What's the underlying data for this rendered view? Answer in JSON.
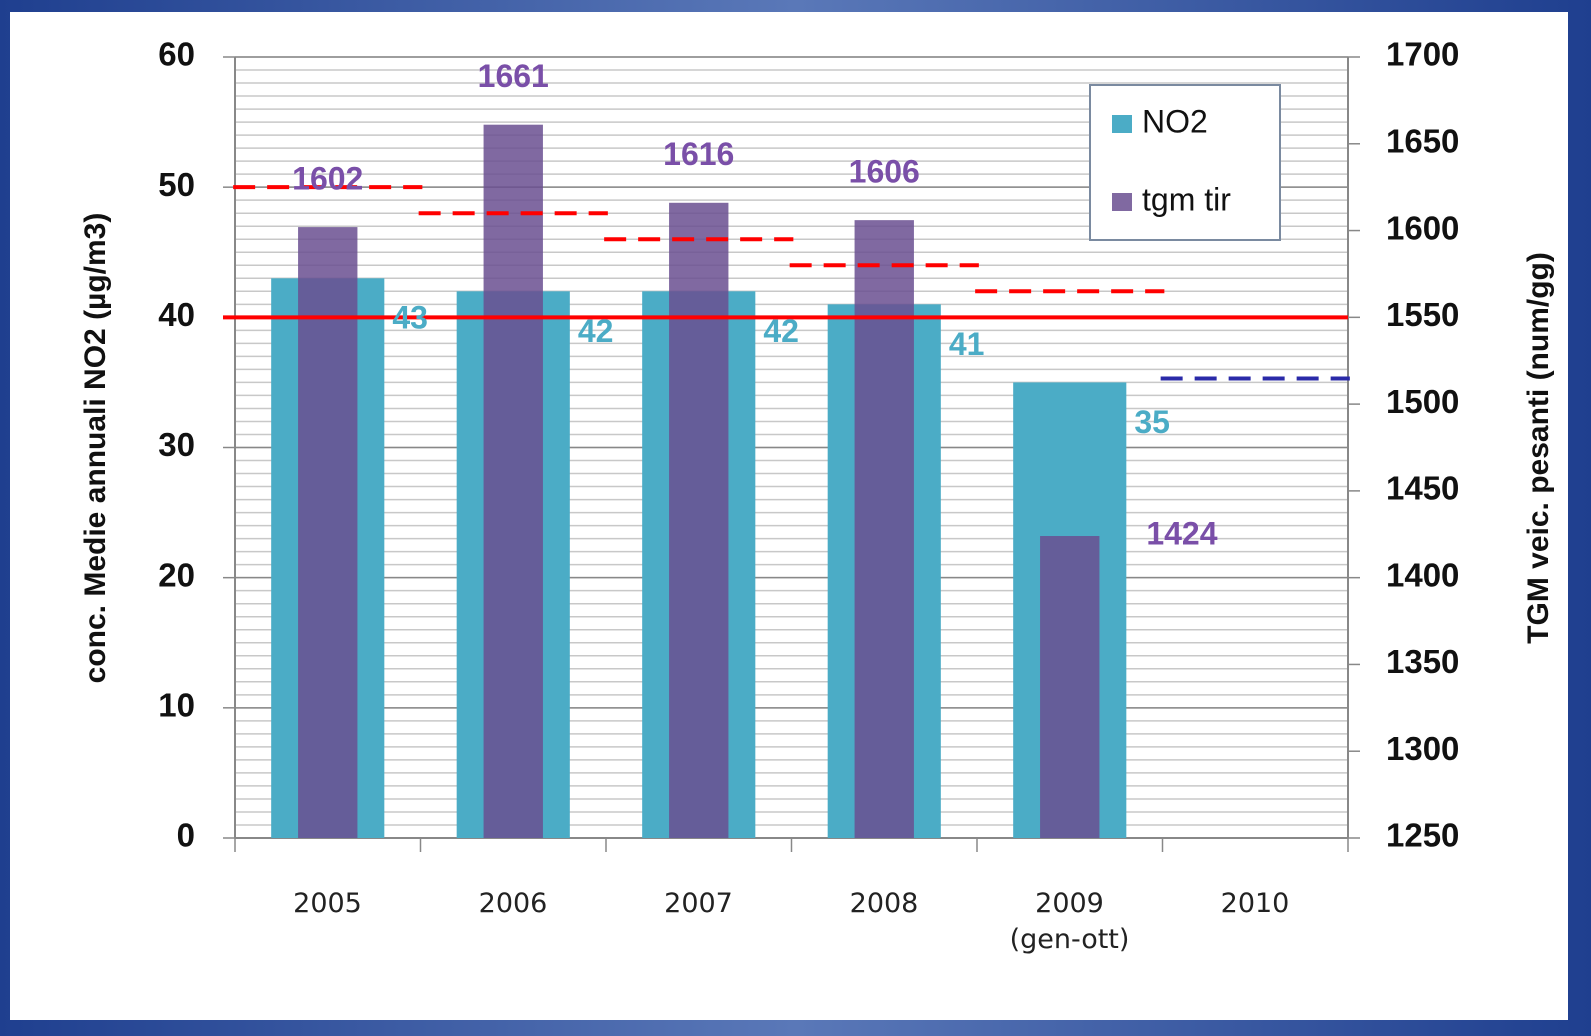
{
  "chart_data": {
    "type": "bar",
    "categories": [
      "2005",
      "2006",
      "2007",
      "2008",
      "2009\n(gen-ott)",
      "2010"
    ],
    "series": [
      {
        "name": "NO2",
        "color": "#4bacc6",
        "values": [
          43,
          42,
          42,
          41,
          35,
          null
        ]
      },
      {
        "name": "tgm tir",
        "color": "#6a4f90",
        "opacity": 0.85,
        "axis": "y2",
        "values": [
          1602,
          1661,
          1616,
          1606,
          1424,
          null
        ]
      }
    ],
    "ylabel": "conc. Medie annuali NO2 (µg/m3)",
    "y2label": "TGM veic. pesanti (num/gg)",
    "ylim": [
      0,
      60
    ],
    "yticks": [
      0,
      10,
      20,
      30,
      40,
      50,
      60
    ],
    "y2lim": [
      1250,
      1700
    ],
    "y2ticks": [
      1250,
      1300,
      1350,
      1400,
      1450,
      1500,
      1550,
      1600,
      1650,
      1700
    ],
    "yminorticks": [
      0,
      1,
      2,
      3,
      4,
      5,
      6,
      7,
      8,
      9,
      10,
      11,
      12,
      13,
      14,
      15,
      16,
      17,
      18,
      19,
      20,
      21,
      22,
      23,
      24,
      25,
      26,
      27,
      28,
      29,
      30,
      31,
      32,
      33,
      34,
      35,
      36,
      37,
      38,
      39,
      40,
      41,
      42,
      43,
      44,
      45,
      46,
      47,
      48,
      49,
      50,
      51,
      52,
      53,
      54,
      55,
      56,
      57,
      58,
      59,
      60
    ],
    "grid": true,
    "legend": "upper right",
    "hline": {
      "value": 40,
      "color": "#ff0000"
    },
    "reference_lines": [
      {
        "values": [
          50,
          48,
          46,
          44,
          42,
          null
        ],
        "color": "#ff0000",
        "dashed": true
      },
      {
        "values": [
          null,
          null,
          null,
          null,
          null,
          35.3
        ],
        "color": "#2a2aa8",
        "dashed": true
      }
    ]
  }
}
